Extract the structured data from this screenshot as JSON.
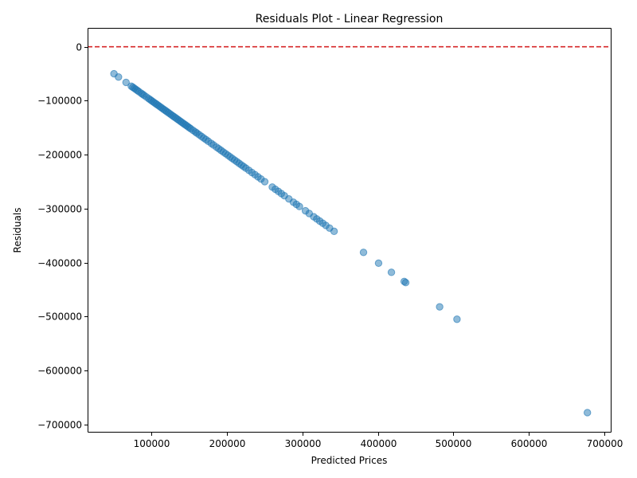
{
  "chart_data": {
    "type": "scatter",
    "title": "Residuals Plot - Linear Regression",
    "xlabel": "Predicted Prices",
    "ylabel": "Residuals",
    "xlim": [
      15000,
      710000
    ],
    "ylim": [
      -715000,
      35000
    ],
    "xticks": [
      100000,
      200000,
      300000,
      400000,
      500000,
      600000,
      700000
    ],
    "xtick_labels": [
      "100000",
      "200000",
      "300000",
      "400000",
      "500000",
      "600000",
      "700000"
    ],
    "yticks": [
      0,
      -100000,
      -200000,
      -300000,
      -400000,
      -500000,
      -600000,
      -700000
    ],
    "ytick_labels": [
      "0",
      "−100000",
      "−200000",
      "−300000",
      "−400000",
      "−500000",
      "−600000",
      "−700000"
    ],
    "reference_line": {
      "y": 0,
      "color": "#d62728",
      "style": "dashed"
    },
    "marker_color": "#1f77b4",
    "marker_alpha": 0.5,
    "grid": false,
    "legend": "none",
    "series": [
      {
        "points": [
          [
            50000,
            -50000
          ],
          [
            56000,
            -56000
          ],
          [
            66000,
            -66000
          ],
          [
            73000,
            -73000
          ],
          [
            75000,
            -75000
          ],
          [
            77000,
            -77000
          ],
          [
            79000,
            -79000
          ],
          [
            81000,
            -81000
          ],
          [
            83000,
            -83000
          ],
          [
            86000,
            -86000
          ],
          [
            88000,
            -88000
          ],
          [
            90000,
            -90000
          ],
          [
            93000,
            -93000
          ],
          [
            96000,
            -96000
          ],
          [
            98000,
            -98000
          ],
          [
            100000,
            -100000
          ],
          [
            102000,
            -102000
          ],
          [
            104000,
            -104000
          ],
          [
            106000,
            -106000
          ],
          [
            108000,
            -108000
          ],
          [
            110000,
            -110000
          ],
          [
            112000,
            -112000
          ],
          [
            114000,
            -114000
          ],
          [
            116000,
            -116000
          ],
          [
            118000,
            -118000
          ],
          [
            120000,
            -120000
          ],
          [
            122000,
            -122000
          ],
          [
            124000,
            -124000
          ],
          [
            126000,
            -126000
          ],
          [
            128000,
            -128000
          ],
          [
            130000,
            -130000
          ],
          [
            132000,
            -132000
          ],
          [
            134000,
            -134000
          ],
          [
            136000,
            -136000
          ],
          [
            138000,
            -138000
          ],
          [
            140000,
            -140000
          ],
          [
            142000,
            -142000
          ],
          [
            144000,
            -144000
          ],
          [
            146000,
            -146000
          ],
          [
            148000,
            -148000
          ],
          [
            150000,
            -150000
          ],
          [
            152000,
            -152000
          ],
          [
            155000,
            -155000
          ],
          [
            158000,
            -158000
          ],
          [
            160000,
            -160000
          ],
          [
            163000,
            -163000
          ],
          [
            166000,
            -166000
          ],
          [
            169000,
            -169000
          ],
          [
            172000,
            -172000
          ],
          [
            175000,
            -175000
          ],
          [
            179000,
            -179000
          ],
          [
            182000,
            -182000
          ],
          [
            186000,
            -186000
          ],
          [
            189000,
            -189000
          ],
          [
            192000,
            -192000
          ],
          [
            195000,
            -195000
          ],
          [
            198000,
            -198000
          ],
          [
            201000,
            -201000
          ],
          [
            204000,
            -204000
          ],
          [
            207000,
            -207000
          ],
          [
            210000,
            -210000
          ],
          [
            213000,
            -213000
          ],
          [
            216000,
            -216000
          ],
          [
            219000,
            -219000
          ],
          [
            222000,
            -222000
          ],
          [
            225000,
            -225000
          ],
          [
            229000,
            -229000
          ],
          [
            233000,
            -233000
          ],
          [
            237000,
            -237000
          ],
          [
            241000,
            -241000
          ],
          [
            245000,
            -245000
          ],
          [
            250000,
            -250000
          ],
          [
            260000,
            -260000
          ],
          [
            264000,
            -264000
          ],
          [
            268000,
            -268000
          ],
          [
            272000,
            -272000
          ],
          [
            276000,
            -276000
          ],
          [
            282000,
            -282000
          ],
          [
            288000,
            -288000
          ],
          [
            292000,
            -292000
          ],
          [
            296000,
            -296000
          ],
          [
            304000,
            -304000
          ],
          [
            309000,
            -309000
          ],
          [
            315000,
            -315000
          ],
          [
            319000,
            -319000
          ],
          [
            323000,
            -323000
          ],
          [
            327000,
            -327000
          ],
          [
            331000,
            -331000
          ],
          [
            336000,
            -336000
          ],
          [
            342000,
            -342000
          ],
          [
            381000,
            -381000
          ],
          [
            401000,
            -401000
          ],
          [
            418000,
            -418000
          ],
          [
            435000,
            -435000
          ],
          [
            437000,
            -437000
          ],
          [
            482000,
            -482000
          ],
          [
            505000,
            -505000
          ],
          [
            678000,
            -678000
          ]
        ]
      }
    ]
  }
}
